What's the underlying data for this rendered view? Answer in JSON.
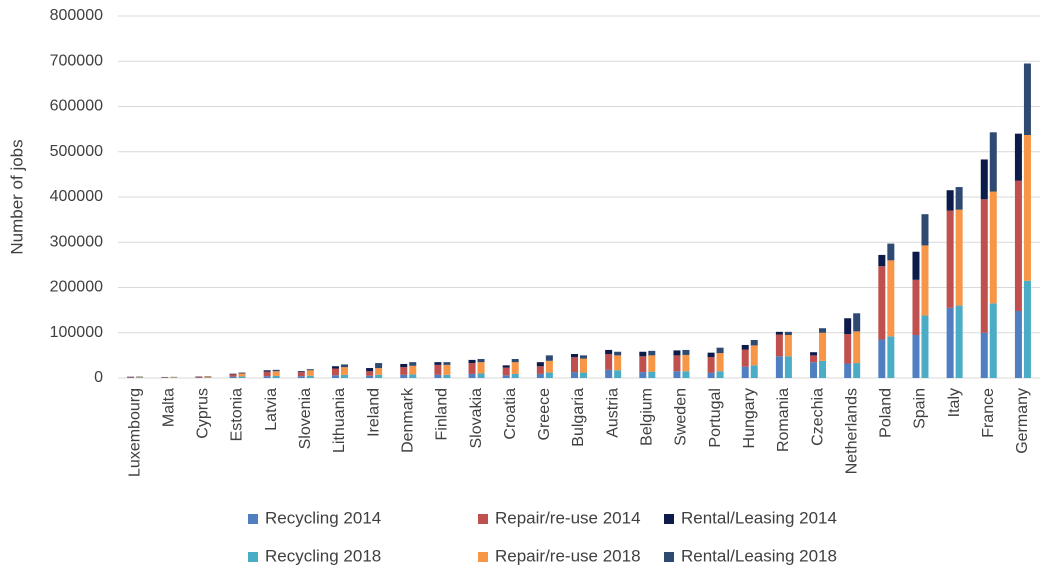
{
  "chart_data": {
    "type": "bar",
    "y_label": "Number of jobs",
    "categories": [
      "Luxembourg",
      "Malta",
      "Cyprus",
      "Estonia",
      "Latvia",
      "Slovenia",
      "Lithuania",
      "Ireland",
      "Denmark",
      "Finland",
      "Slovakia",
      "Croatia",
      "Greece",
      "Bulgaria",
      "Austria",
      "Belgium",
      "Sweden",
      "Portugal",
      "Hungary",
      "Romania",
      "Czechia",
      "Netherlands",
      "Poland",
      "Spain",
      "Italy",
      "France",
      "Germany"
    ],
    "series": [
      {
        "name": "Recycling 2014",
        "color": "#4f7fc0",
        "values": [
          1000,
          800,
          1000,
          3000,
          4000,
          4000,
          6000,
          5000,
          7000,
          7000,
          9000,
          6000,
          9000,
          13000,
          18000,
          13000,
          15000,
          12000,
          25000,
          48000,
          35000,
          32000,
          85000,
          95000,
          155000,
          100000,
          148000
        ]
      },
      {
        "name": "Repair/re-use 2014",
        "color": "#c0504d",
        "values": [
          1500,
          1200,
          2000,
          5000,
          10000,
          9000,
          15000,
          10000,
          17000,
          22000,
          24000,
          17000,
          17000,
          33000,
          35000,
          35000,
          35000,
          34000,
          38000,
          48000,
          15000,
          65000,
          162000,
          122000,
          215000,
          295000,
          288000
        ]
      },
      {
        "name": "Rental/Leasing 2014",
        "color": "#0d1b4b",
        "values": [
          500,
          300,
          500,
          1500,
          3000,
          2000,
          5000,
          7000,
          7000,
          6000,
          7000,
          5000,
          9000,
          7000,
          9000,
          10000,
          11000,
          10000,
          10000,
          6000,
          7000,
          35000,
          25000,
          62000,
          45000,
          88000,
          104000
        ]
      },
      {
        "name": "Recycling 2018",
        "color": "#4bacc6",
        "values": [
          1200,
          900,
          1200,
          3500,
          4500,
          5000,
          7000,
          7000,
          8000,
          7000,
          10000,
          9000,
          12000,
          12000,
          17000,
          14000,
          15000,
          15000,
          28000,
          48000,
          38000,
          33000,
          92000,
          138000,
          160000,
          165000,
          215000
        ]
      },
      {
        "name": "Repair/re-use 2018",
        "color": "#f79646",
        "values": [
          1700,
          1300,
          2500,
          6500,
          10500,
          12000,
          17000,
          15000,
          19000,
          22000,
          25000,
          26000,
          26000,
          31000,
          33000,
          36000,
          36000,
          40000,
          44000,
          47000,
          62000,
          70000,
          168000,
          155000,
          212000,
          247000,
          322000
        ]
      },
      {
        "name": "Rental/Leasing 2018",
        "color": "#2e4a72",
        "values": [
          600,
          300,
          600,
          2000,
          3000,
          2500,
          6000,
          11000,
          8000,
          6000,
          7000,
          7000,
          12000,
          7000,
          8000,
          10000,
          11000,
          12000,
          12000,
          7000,
          10000,
          40000,
          37000,
          69000,
          50000,
          131000,
          158000
        ]
      }
    ],
    "ylim": [
      0,
      800000
    ],
    "yticks": [
      0,
      100000,
      200000,
      300000,
      400000,
      500000,
      600000,
      700000,
      800000
    ],
    "grid": true
  }
}
